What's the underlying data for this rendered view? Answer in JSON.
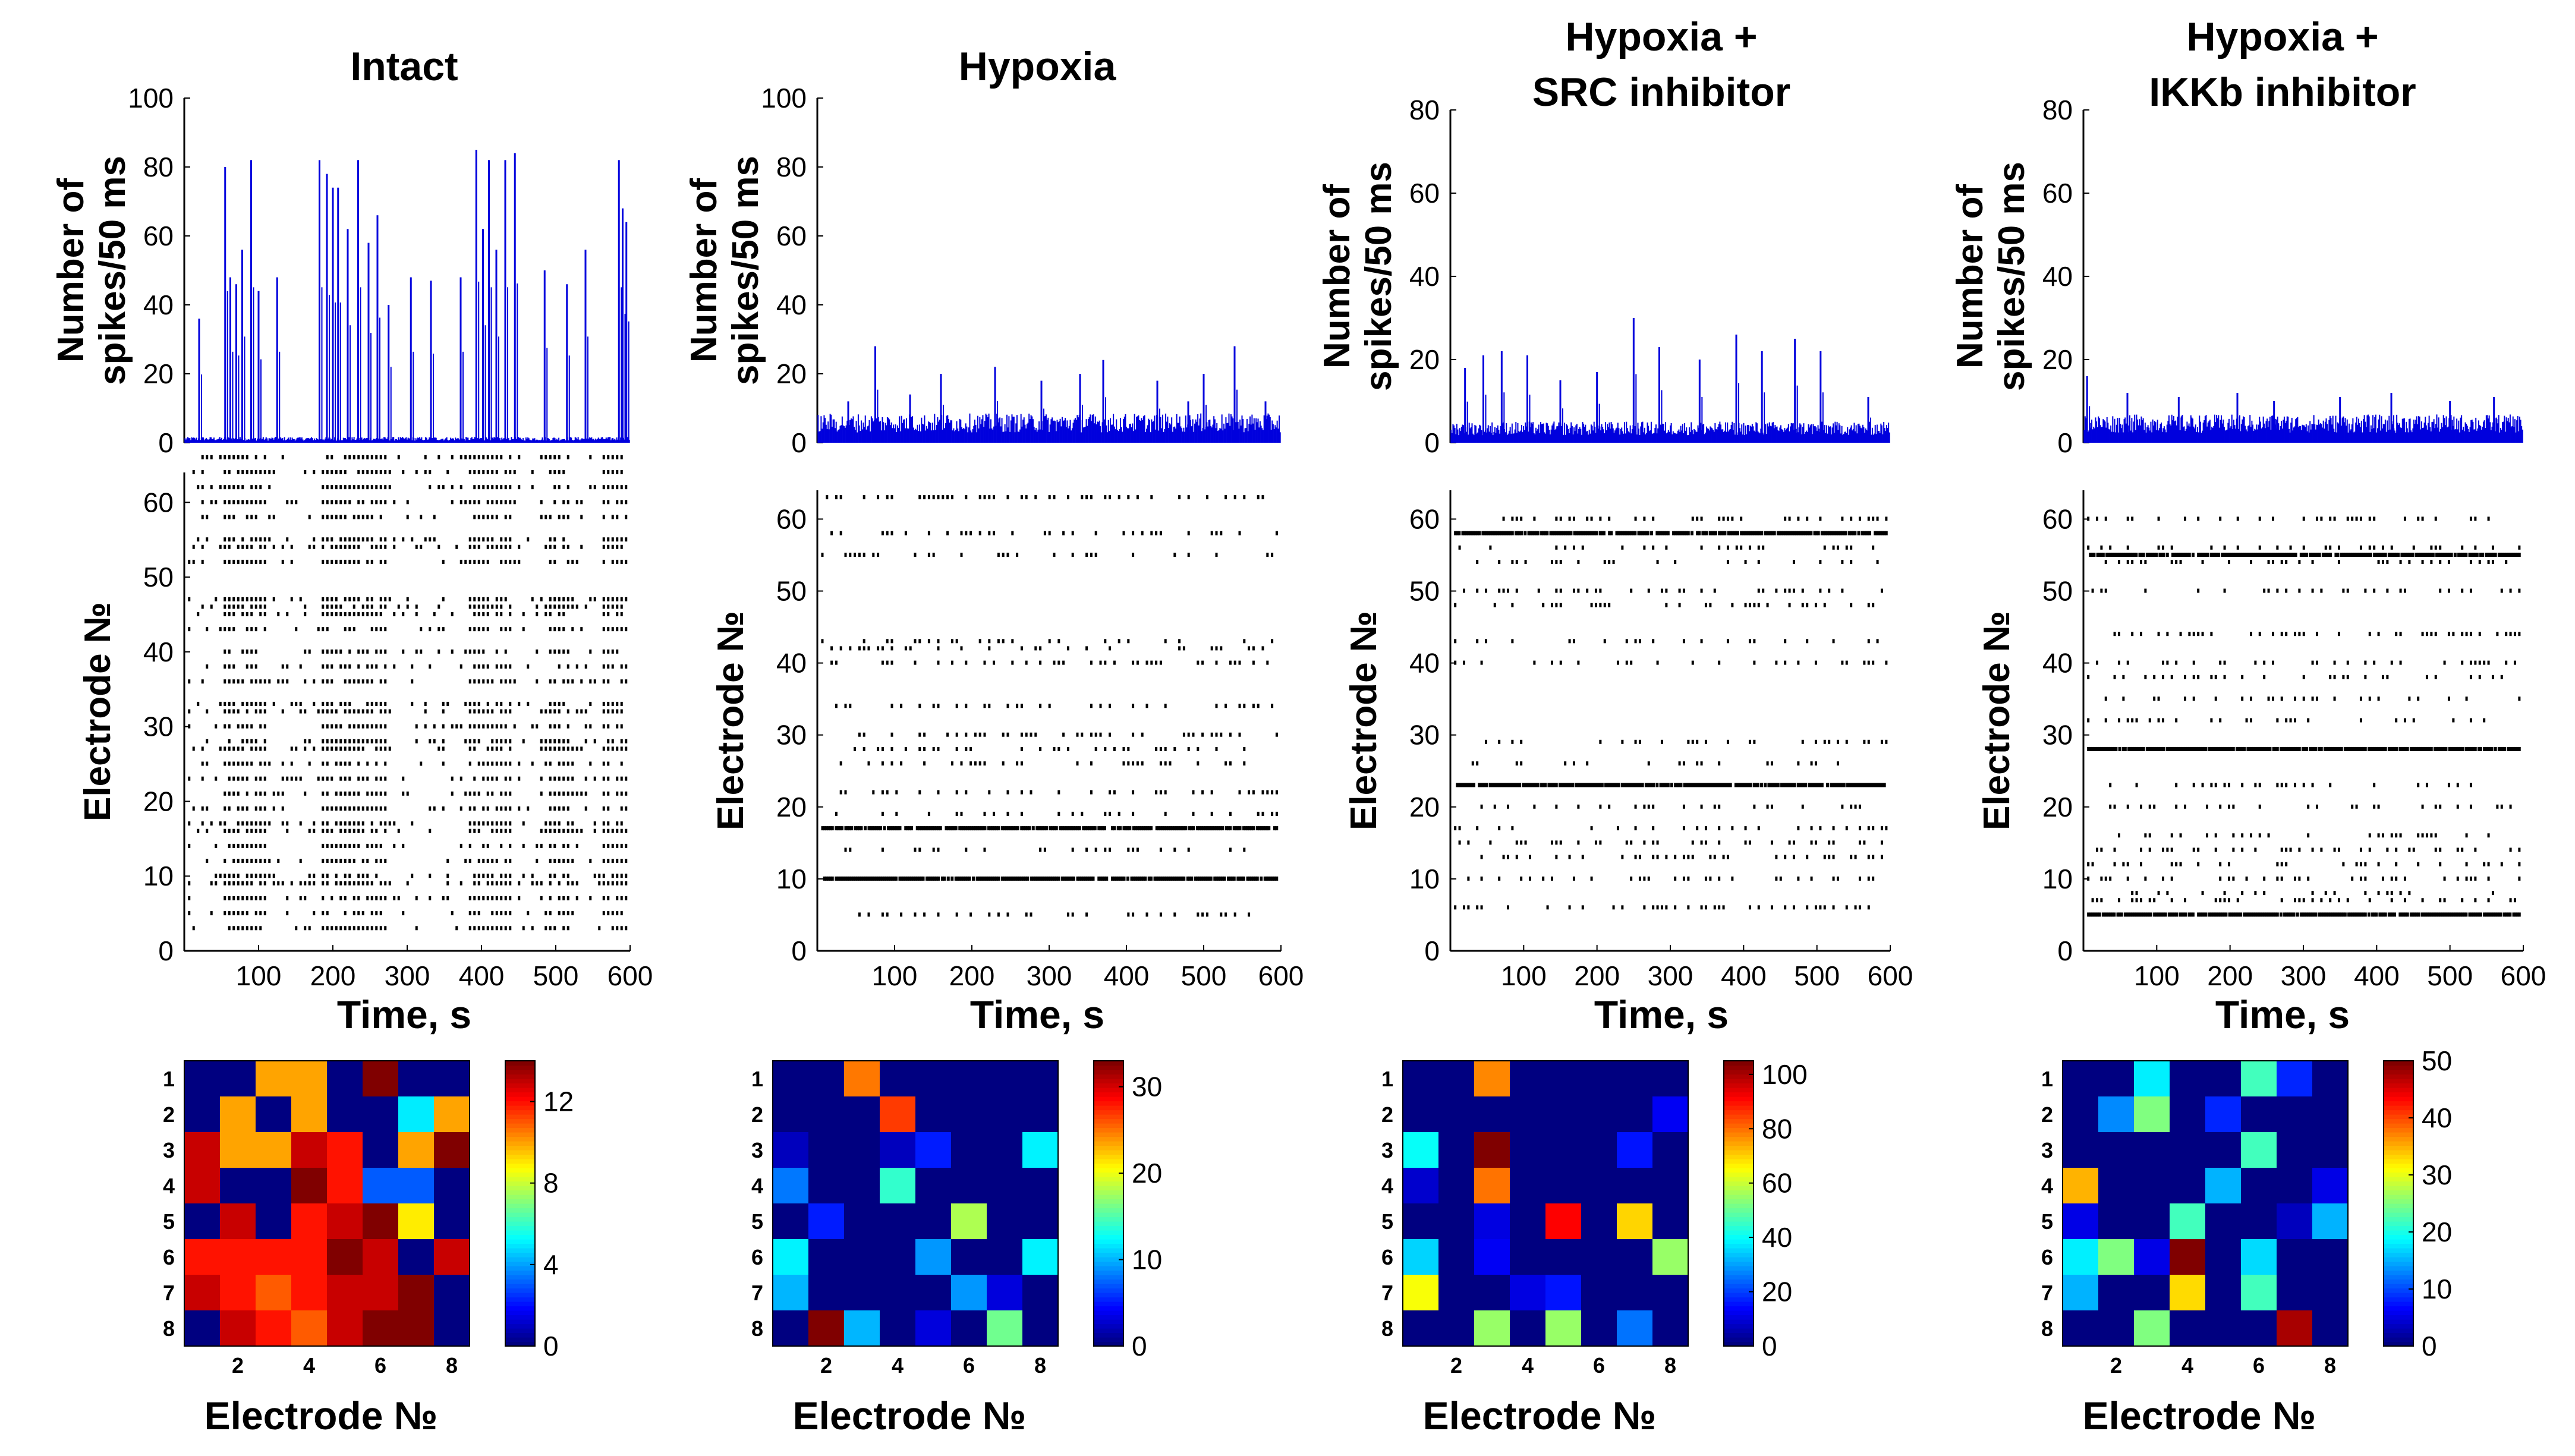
{
  "chart_data": [
    {
      "panel": "Intact",
      "title_lines": [
        "Intact"
      ],
      "histogram": {
        "type": "bar",
        "ylabel_lines": [
          "Number of",
          "spikes/50 ms"
        ],
        "ylim": [
          0,
          100
        ],
        "yticks": [
          0,
          20,
          40,
          60,
          80,
          100
        ],
        "xlim": [
          0,
          600
        ],
        "bar_color": "#0000dd",
        "peaks": [
          {
            "t": 20,
            "v": 36
          },
          {
            "t": 55,
            "v": 80
          },
          {
            "t": 62,
            "v": 48
          },
          {
            "t": 70,
            "v": 46
          },
          {
            "t": 78,
            "v": 56
          },
          {
            "t": 90,
            "v": 82
          },
          {
            "t": 100,
            "v": 44
          },
          {
            "t": 125,
            "v": 48
          },
          {
            "t": 182,
            "v": 82
          },
          {
            "t": 192,
            "v": 78
          },
          {
            "t": 200,
            "v": 74
          },
          {
            "t": 207,
            "v": 74
          },
          {
            "t": 220,
            "v": 62
          },
          {
            "t": 234,
            "v": 82
          },
          {
            "t": 248,
            "v": 58
          },
          {
            "t": 260,
            "v": 66
          },
          {
            "t": 275,
            "v": 40
          },
          {
            "t": 305,
            "v": 48
          },
          {
            "t": 332,
            "v": 47
          },
          {
            "t": 372,
            "v": 48
          },
          {
            "t": 393,
            "v": 85
          },
          {
            "t": 402,
            "v": 62
          },
          {
            "t": 410,
            "v": 82
          },
          {
            "t": 420,
            "v": 56
          },
          {
            "t": 432,
            "v": 82
          },
          {
            "t": 445,
            "v": 84
          },
          {
            "t": 485,
            "v": 50
          },
          {
            "t": 515,
            "v": 46
          },
          {
            "t": 540,
            "v": 56
          },
          {
            "t": 585,
            "v": 82
          },
          {
            "t": 590,
            "v": 68
          },
          {
            "t": 595,
            "v": 64
          }
        ],
        "baseline": 1
      },
      "raster": {
        "ylabel": "Electrode №",
        "ylim": [
          0,
          64
        ],
        "yticks": [
          0,
          10,
          20,
          30,
          40,
          50,
          60
        ],
        "xlim": [
          0,
          600
        ],
        "xticks": [
          100,
          200,
          300,
          400,
          500,
          600
        ],
        "xlabel": "Time, s"
      },
      "heatmap": {
        "type": "heatmap",
        "rows": [
          1,
          2,
          3,
          4,
          5,
          6,
          7,
          8
        ],
        "cols": [
          1,
          2,
          3,
          4,
          5,
          6,
          7,
          8
        ],
        "xticks": [
          2,
          4,
          6,
          8
        ],
        "xlabel": "Electrode №",
        "vmin": 0,
        "vmax": 14,
        "cbar_ticks": [
          0,
          4,
          8,
          12
        ],
        "values": [
          [
            0,
            0,
            10,
            10,
            0,
            14,
            0,
            0
          ],
          [
            0,
            10,
            0,
            10,
            0,
            0,
            5,
            10
          ],
          [
            13,
            10,
            10,
            13,
            12,
            0,
            10,
            14
          ],
          [
            13,
            0,
            0,
            14,
            12,
            3,
            3,
            0
          ],
          [
            0,
            13,
            0,
            12,
            13,
            14,
            9,
            0
          ],
          [
            12,
            12,
            12,
            12,
            14,
            13,
            0,
            13
          ],
          [
            13,
            12,
            11,
            12,
            13,
            13,
            14,
            0
          ],
          [
            0,
            13,
            12,
            11,
            13,
            14,
            14,
            0
          ]
        ]
      }
    },
    {
      "panel": "Hypoxia",
      "title_lines": [
        "Hypoxia"
      ],
      "histogram": {
        "type": "bar",
        "ylabel_lines": [
          "Number of",
          "spikes/50 ms"
        ],
        "ylim": [
          0,
          100
        ],
        "yticks": [
          0,
          20,
          40,
          60,
          80,
          100
        ],
        "xlim": [
          0,
          600
        ],
        "bar_color": "#0000dd",
        "peaks": [
          {
            "t": 40,
            "v": 12
          },
          {
            "t": 75,
            "v": 28
          },
          {
            "t": 120,
            "v": 14
          },
          {
            "t": 160,
            "v": 20
          },
          {
            "t": 230,
            "v": 22
          },
          {
            "t": 290,
            "v": 18
          },
          {
            "t": 340,
            "v": 20
          },
          {
            "t": 370,
            "v": 24
          },
          {
            "t": 440,
            "v": 18
          },
          {
            "t": 480,
            "v": 12
          },
          {
            "t": 500,
            "v": 20
          },
          {
            "t": 540,
            "v": 28
          },
          {
            "t": 580,
            "v": 12
          }
        ],
        "baseline": 5
      },
      "raster": {
        "ylabel": "Electrode №",
        "ylim": [
          0,
          64
        ],
        "yticks": [
          0,
          10,
          20,
          30,
          40,
          50,
          60
        ],
        "xlim": [
          0,
          600
        ],
        "xticks": [
          100,
          200,
          300,
          400,
          500,
          600
        ],
        "xlabel": "Time, s"
      },
      "heatmap": {
        "type": "heatmap",
        "rows": [
          1,
          2,
          3,
          4,
          5,
          6,
          7,
          8
        ],
        "cols": [
          1,
          2,
          3,
          4,
          5,
          6,
          7,
          8
        ],
        "xticks": [
          2,
          4,
          6,
          8
        ],
        "xlabel": "Electrode №",
        "vmin": 0,
        "vmax": 33,
        "cbar_ticks": [
          0,
          10,
          20,
          30
        ],
        "values": [
          [
            0,
            0,
            25,
            0,
            0,
            0,
            0,
            0
          ],
          [
            0,
            0,
            0,
            27,
            0,
            0,
            0,
            0
          ],
          [
            2,
            0,
            0,
            2,
            5,
            0,
            0,
            12
          ],
          [
            8,
            0,
            0,
            14,
            0,
            0,
            0,
            0
          ],
          [
            0,
            5,
            0,
            0,
            0,
            18,
            0,
            0
          ],
          [
            12,
            0,
            0,
            0,
            9,
            0,
            0,
            12
          ],
          [
            10,
            0,
            0,
            0,
            0,
            9,
            3,
            0
          ],
          [
            0,
            33,
            10,
            0,
            3,
            0,
            16,
            0
          ]
        ]
      }
    },
    {
      "panel": "Hypoxia + SRC inhibitor",
      "title_lines": [
        "Hypoxia +",
        "SRC inhibitor"
      ],
      "histogram": {
        "type": "bar",
        "ylabel_lines": [
          "Number of",
          "spikes/50 ms"
        ],
        "ylim": [
          0,
          80
        ],
        "yticks": [
          0,
          20,
          40,
          60,
          80
        ],
        "xlim": [
          0,
          600
        ],
        "bar_color": "#0000dd",
        "peaks": [
          {
            "t": 20,
            "v": 18
          },
          {
            "t": 45,
            "v": 21
          },
          {
            "t": 70,
            "v": 22
          },
          {
            "t": 105,
            "v": 21
          },
          {
            "t": 150,
            "v": 15
          },
          {
            "t": 200,
            "v": 17
          },
          {
            "t": 250,
            "v": 30
          },
          {
            "t": 285,
            "v": 23
          },
          {
            "t": 340,
            "v": 20
          },
          {
            "t": 390,
            "v": 26
          },
          {
            "t": 425,
            "v": 22
          },
          {
            "t": 470,
            "v": 25
          },
          {
            "t": 505,
            "v": 22
          },
          {
            "t": 570,
            "v": 11
          }
        ],
        "baseline": 3
      },
      "raster": {
        "ylabel": "Electrode №",
        "ylim": [
          0,
          64
        ],
        "yticks": [
          0,
          10,
          20,
          30,
          40,
          50,
          60
        ],
        "xlim": [
          0,
          600
        ],
        "xticks": [
          100,
          200,
          300,
          400,
          500,
          600
        ],
        "xlabel": "Time, s"
      },
      "heatmap": {
        "type": "heatmap",
        "rows": [
          1,
          2,
          3,
          4,
          5,
          6,
          7,
          8
        ],
        "cols": [
          1,
          2,
          3,
          4,
          5,
          6,
          7,
          8
        ],
        "xticks": [
          2,
          4,
          6,
          8
        ],
        "xlabel": "Electrode №",
        "vmin": 0,
        "vmax": 105,
        "cbar_ticks": [
          0,
          20,
          40,
          60,
          80,
          100
        ],
        "values": [
          [
            0,
            0,
            78,
            0,
            0,
            0,
            0,
            0
          ],
          [
            0,
            0,
            0,
            0,
            0,
            0,
            0,
            12
          ],
          [
            40,
            0,
            105,
            0,
            0,
            0,
            15,
            0
          ],
          [
            8,
            0,
            80,
            0,
            0,
            0,
            0,
            0
          ],
          [
            0,
            0,
            10,
            0,
            92,
            0,
            70,
            0
          ],
          [
            35,
            0,
            12,
            0,
            0,
            0,
            0,
            55
          ],
          [
            65,
            0,
            0,
            10,
            15,
            0,
            0,
            0
          ],
          [
            0,
            0,
            55,
            0,
            55,
            0,
            25,
            0
          ]
        ]
      }
    },
    {
      "panel": "Hypoxia + IKKb inhibitor",
      "title_lines": [
        "Hypoxia +",
        "IKKb inhibitor"
      ],
      "histogram": {
        "type": "bar",
        "ylabel_lines": [
          "Number of",
          "spikes/50 ms"
        ],
        "ylim": [
          0,
          80
        ],
        "yticks": [
          0,
          20,
          40,
          60,
          80
        ],
        "xlim": [
          0,
          600
        ],
        "bar_color": "#0000dd",
        "peaks": [
          {
            "t": 5,
            "v": 16
          },
          {
            "t": 60,
            "v": 12
          },
          {
            "t": 130,
            "v": 11
          },
          {
            "t": 210,
            "v": 12
          },
          {
            "t": 260,
            "v": 10
          },
          {
            "t": 350,
            "v": 11
          },
          {
            "t": 420,
            "v": 12
          },
          {
            "t": 500,
            "v": 10
          },
          {
            "t": 560,
            "v": 11
          }
        ],
        "baseline": 4
      },
      "raster": {
        "ylabel": "Electrode №",
        "ylim": [
          0,
          64
        ],
        "yticks": [
          0,
          10,
          20,
          30,
          40,
          50,
          60
        ],
        "xlim": [
          0,
          600
        ],
        "xticks": [
          100,
          200,
          300,
          400,
          500,
          600
        ],
        "xlabel": "Time, s"
      },
      "heatmap": {
        "type": "heatmap",
        "rows": [
          1,
          2,
          3,
          4,
          5,
          6,
          7,
          8
        ],
        "cols": [
          1,
          2,
          3,
          4,
          5,
          6,
          7,
          8
        ],
        "xticks": [
          2,
          4,
          6,
          8
        ],
        "xlabel": "Electrode №",
        "vmin": 0,
        "vmax": 50,
        "cbar_ticks": [
          0,
          10,
          20,
          30,
          40,
          50
        ],
        "values": [
          [
            0,
            0,
            18,
            0,
            0,
            22,
            8,
            0
          ],
          [
            0,
            13,
            25,
            0,
            8,
            0,
            0,
            0
          ],
          [
            0,
            0,
            0,
            0,
            0,
            22,
            0,
            0
          ],
          [
            35,
            0,
            0,
            0,
            15,
            0,
            0,
            5
          ],
          [
            5,
            0,
            0,
            22,
            0,
            0,
            3,
            15
          ],
          [
            18,
            25,
            5,
            50,
            0,
            17,
            0,
            0
          ],
          [
            15,
            0,
            0,
            33,
            0,
            22,
            0,
            0
          ],
          [
            0,
            0,
            25,
            0,
            0,
            0,
            48,
            0
          ]
        ]
      }
    }
  ]
}
